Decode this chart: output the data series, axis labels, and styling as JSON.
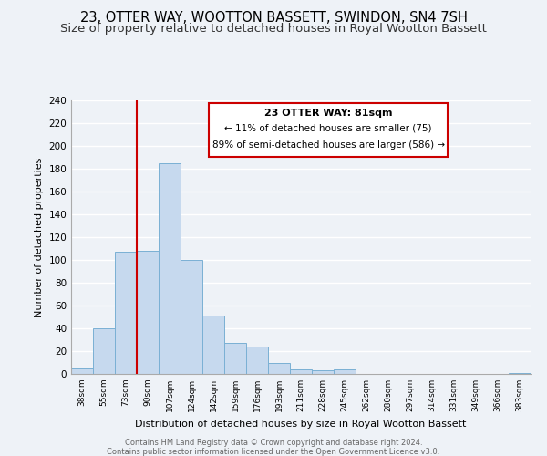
{
  "title": "23, OTTER WAY, WOOTTON BASSETT, SWINDON, SN4 7SH",
  "subtitle": "Size of property relative to detached houses in Royal Wootton Bassett",
  "xlabel": "Distribution of detached houses by size in Royal Wootton Bassett",
  "ylabel": "Number of detached properties",
  "bin_labels": [
    "38sqm",
    "55sqm",
    "73sqm",
    "90sqm",
    "107sqm",
    "124sqm",
    "142sqm",
    "159sqm",
    "176sqm",
    "193sqm",
    "211sqm",
    "228sqm",
    "245sqm",
    "262sqm",
    "280sqm",
    "297sqm",
    "314sqm",
    "331sqm",
    "349sqm",
    "366sqm",
    "383sqm"
  ],
  "bar_heights": [
    5,
    40,
    107,
    108,
    185,
    100,
    51,
    27,
    24,
    10,
    4,
    3,
    4,
    0,
    0,
    0,
    0,
    0,
    0,
    0,
    1
  ],
  "bar_color": "#c6d9ee",
  "bar_edge_color": "#7ab0d4",
  "vline_color": "#cc0000",
  "ylim": [
    0,
    240
  ],
  "yticks": [
    0,
    20,
    40,
    60,
    80,
    100,
    120,
    140,
    160,
    180,
    200,
    220,
    240
  ],
  "annotation_title": "23 OTTER WAY: 81sqm",
  "annotation_line1": "← 11% of detached houses are smaller (75)",
  "annotation_line2": "89% of semi-detached houses are larger (586) →",
  "annotation_box_color": "#ffffff",
  "annotation_box_edge": "#cc0000",
  "footer1": "Contains HM Land Registry data © Crown copyright and database right 2024.",
  "footer2": "Contains public sector information licensed under the Open Government Licence v3.0.",
  "bg_color": "#eef2f7",
  "grid_color": "#ffffff",
  "title_fontsize": 10.5,
  "subtitle_fontsize": 9.5
}
